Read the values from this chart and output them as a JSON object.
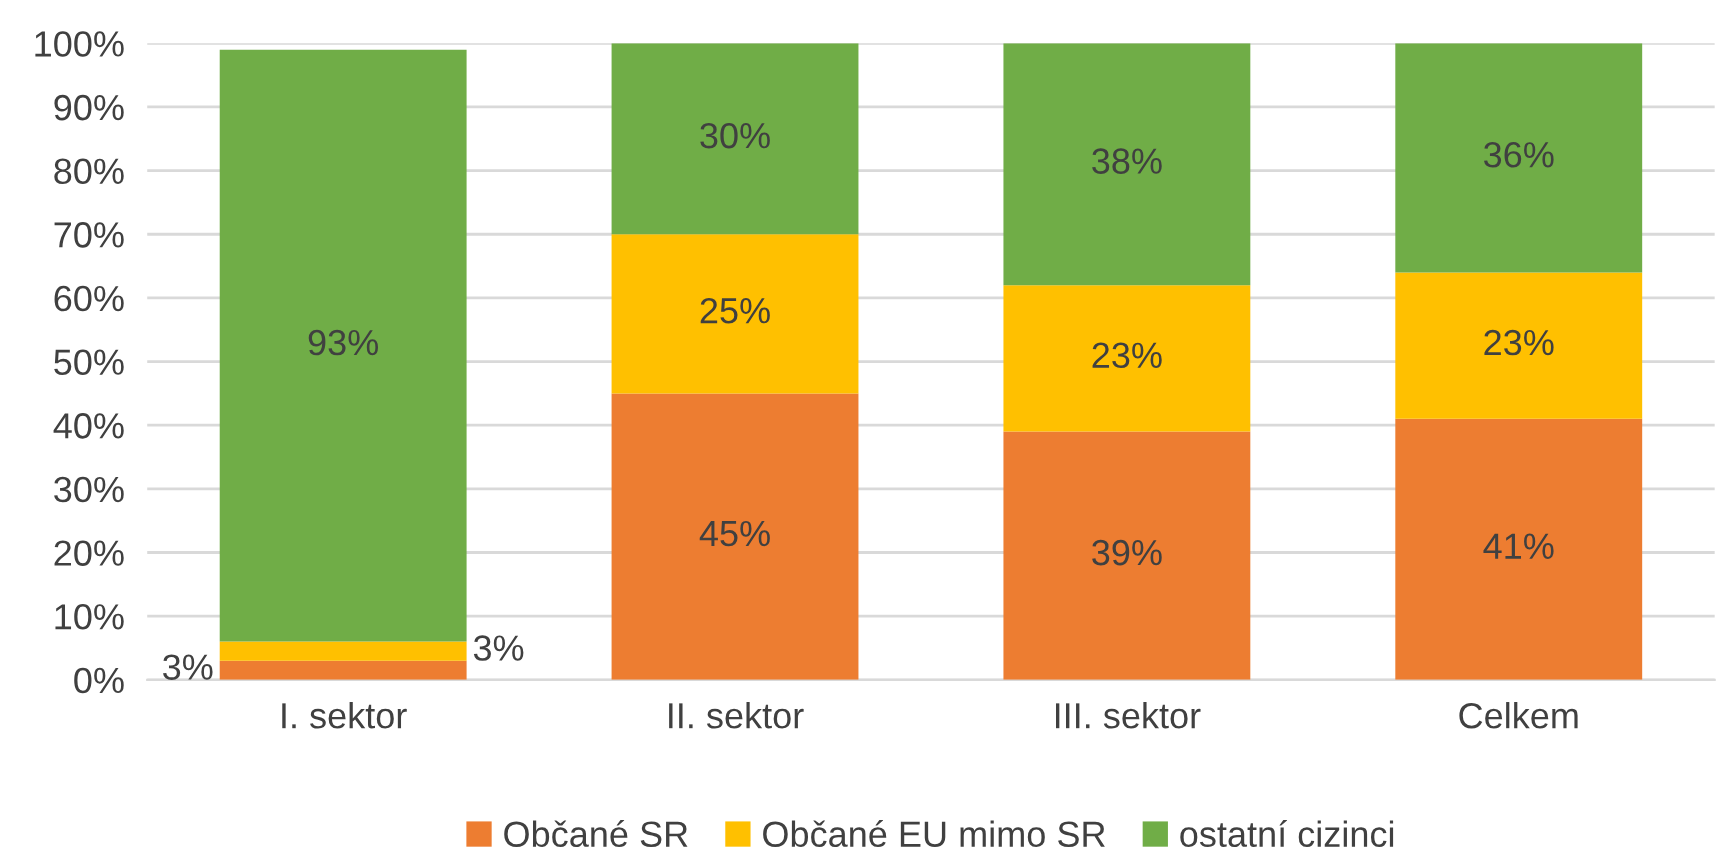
{
  "chart_data": {
    "type": "bar",
    "stacked": true,
    "categories": [
      "I. sektor",
      "II. sektor",
      "III. sektor",
      "Celkem"
    ],
    "series": [
      {
        "name": "Občané SR",
        "color": "#ed7d31",
        "values": [
          3,
          45,
          39,
          41
        ],
        "value_labels": [
          "3%",
          "45%",
          "39%",
          "41%"
        ]
      },
      {
        "name": "Občané EU mimo SR",
        "color": "#ffc000",
        "values": [
          3,
          25,
          23,
          23
        ],
        "value_labels": [
          "3%",
          "25%",
          "23%",
          "23%"
        ]
      },
      {
        "name": "ostatní cizinci",
        "color": "#70ad47",
        "values": [
          93,
          30,
          38,
          36
        ],
        "value_labels": [
          "93%",
          "30%",
          "38%",
          "36%"
        ]
      }
    ],
    "ylim": [
      0,
      100
    ],
    "yticks": [
      {
        "value": 0,
        "label": "0%"
      },
      {
        "value": 10,
        "label": "10%"
      },
      {
        "value": 20,
        "label": "20%"
      },
      {
        "value": 30,
        "label": "30%"
      },
      {
        "value": 40,
        "label": "40%"
      },
      {
        "value": 50,
        "label": "50%"
      },
      {
        "value": 60,
        "label": "60%"
      },
      {
        "value": 70,
        "label": "70%"
      },
      {
        "value": 80,
        "label": "80%"
      },
      {
        "value": 90,
        "label": "90%"
      },
      {
        "value": 100,
        "label": "100%"
      }
    ],
    "grid": "y",
    "legend": "bottom"
  }
}
